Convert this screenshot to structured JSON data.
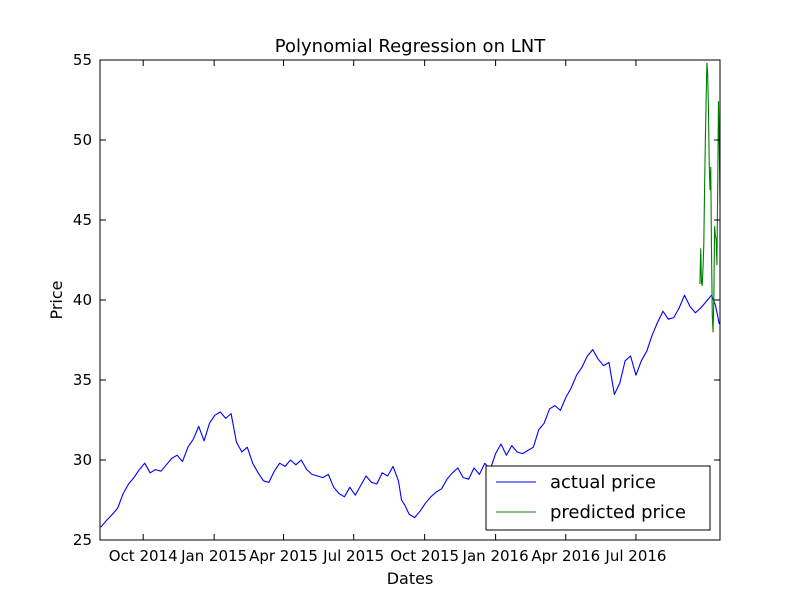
{
  "chart_data": {
    "type": "line",
    "title": "Polynomial Regression on LNT",
    "xlabel": "Dates",
    "ylabel": "Price",
    "xlim": [
      "2014-08-06",
      "2016-10-18"
    ],
    "ylim": [
      25,
      55
    ],
    "yticks": [
      25,
      30,
      35,
      40,
      45,
      50,
      55
    ],
    "xticks": [
      {
        "date": "2014-10-01",
        "label": "Oct 2014"
      },
      {
        "date": "2015-01-01",
        "label": "Jan 2015"
      },
      {
        "date": "2015-04-01",
        "label": "Apr 2015"
      },
      {
        "date": "2015-07-01",
        "label": "Jul 2015"
      },
      {
        "date": "2015-10-01",
        "label": "Oct 2015"
      },
      {
        "date": "2016-01-01",
        "label": "Jan 2016"
      },
      {
        "date": "2016-04-01",
        "label": "Apr 2016"
      },
      {
        "date": "2016-07-01",
        "label": "Jul 2016"
      }
    ],
    "grid": false,
    "legend": "lower-right",
    "series": [
      {
        "name": "actual price",
        "color": "#0000ff",
        "points": [
          [
            "2014-08-07",
            25.8
          ],
          [
            "2014-08-14",
            26.2
          ],
          [
            "2014-08-22",
            26.6
          ],
          [
            "2014-08-29",
            27.0
          ],
          [
            "2014-09-05",
            27.9
          ],
          [
            "2014-09-12",
            28.5
          ],
          [
            "2014-09-19",
            28.9
          ],
          [
            "2014-09-26",
            29.4
          ],
          [
            "2014-10-03",
            29.8
          ],
          [
            "2014-10-10",
            29.2
          ],
          [
            "2014-10-17",
            29.4
          ],
          [
            "2014-10-24",
            29.3
          ],
          [
            "2014-10-31",
            29.7
          ],
          [
            "2014-11-07",
            30.1
          ],
          [
            "2014-11-14",
            30.3
          ],
          [
            "2014-11-21",
            29.9
          ],
          [
            "2014-11-28",
            30.8
          ],
          [
            "2014-12-05",
            31.3
          ],
          [
            "2014-12-12",
            32.1
          ],
          [
            "2014-12-19",
            31.2
          ],
          [
            "2014-12-26",
            32.3
          ],
          [
            "2015-01-02",
            32.8
          ],
          [
            "2015-01-09",
            33.0
          ],
          [
            "2015-01-16",
            32.6
          ],
          [
            "2015-01-23",
            32.9
          ],
          [
            "2015-01-30",
            31.1
          ],
          [
            "2015-02-06",
            30.5
          ],
          [
            "2015-02-13",
            30.8
          ],
          [
            "2015-02-20",
            29.8
          ],
          [
            "2015-02-27",
            29.2
          ],
          [
            "2015-03-06",
            28.7
          ],
          [
            "2015-03-13",
            28.6
          ],
          [
            "2015-03-20",
            29.3
          ],
          [
            "2015-03-27",
            29.8
          ],
          [
            "2015-04-03",
            29.6
          ],
          [
            "2015-04-10",
            30.0
          ],
          [
            "2015-04-17",
            29.7
          ],
          [
            "2015-04-24",
            30.0
          ],
          [
            "2015-05-01",
            29.4
          ],
          [
            "2015-05-08",
            29.1
          ],
          [
            "2015-05-15",
            29.0
          ],
          [
            "2015-05-22",
            28.9
          ],
          [
            "2015-05-29",
            29.1
          ],
          [
            "2015-06-05",
            28.3
          ],
          [
            "2015-06-12",
            27.9
          ],
          [
            "2015-06-19",
            27.7
          ],
          [
            "2015-06-26",
            28.3
          ],
          [
            "2015-07-03",
            27.8
          ],
          [
            "2015-07-10",
            28.4
          ],
          [
            "2015-07-17",
            29.0
          ],
          [
            "2015-07-24",
            28.6
          ],
          [
            "2015-07-31",
            28.5
          ],
          [
            "2015-08-07",
            29.2
          ],
          [
            "2015-08-14",
            29.0
          ],
          [
            "2015-08-21",
            29.6
          ],
          [
            "2015-08-28",
            28.7
          ],
          [
            "2015-09-01",
            27.5
          ],
          [
            "2015-09-05",
            27.2
          ],
          [
            "2015-09-11",
            26.6
          ],
          [
            "2015-09-18",
            26.4
          ],
          [
            "2015-09-25",
            26.8
          ],
          [
            "2015-10-02",
            27.3
          ],
          [
            "2015-10-09",
            27.7
          ],
          [
            "2015-10-16",
            28.0
          ],
          [
            "2015-10-23",
            28.2
          ],
          [
            "2015-10-30",
            28.8
          ],
          [
            "2015-11-06",
            29.2
          ],
          [
            "2015-11-13",
            29.5
          ],
          [
            "2015-11-20",
            28.9
          ],
          [
            "2015-11-27",
            28.8
          ],
          [
            "2015-12-04",
            29.5
          ],
          [
            "2015-12-11",
            29.1
          ],
          [
            "2015-12-18",
            29.8
          ],
          [
            "2015-12-25",
            29.4
          ],
          [
            "2016-01-01",
            30.4
          ],
          [
            "2016-01-08",
            31.0
          ],
          [
            "2016-01-15",
            30.3
          ],
          [
            "2016-01-22",
            30.9
          ],
          [
            "2016-01-29",
            30.5
          ],
          [
            "2016-02-05",
            30.4
          ],
          [
            "2016-02-12",
            30.6
          ],
          [
            "2016-02-19",
            30.8
          ],
          [
            "2016-02-26",
            31.9
          ],
          [
            "2016-03-04",
            32.3
          ],
          [
            "2016-03-11",
            33.2
          ],
          [
            "2016-03-18",
            33.4
          ],
          [
            "2016-03-25",
            33.1
          ],
          [
            "2016-04-01",
            33.9
          ],
          [
            "2016-04-08",
            34.5
          ],
          [
            "2016-04-15",
            35.3
          ],
          [
            "2016-04-22",
            35.8
          ],
          [
            "2016-04-29",
            36.5
          ],
          [
            "2016-05-06",
            36.9
          ],
          [
            "2016-05-13",
            36.3
          ],
          [
            "2016-05-20",
            35.9
          ],
          [
            "2016-05-27",
            36.1
          ],
          [
            "2016-06-03",
            34.1
          ],
          [
            "2016-06-10",
            34.8
          ],
          [
            "2016-06-17",
            36.2
          ],
          [
            "2016-06-24",
            36.5
          ],
          [
            "2016-07-01",
            35.3
          ],
          [
            "2016-07-08",
            36.2
          ],
          [
            "2016-07-15",
            36.8
          ],
          [
            "2016-07-22",
            37.8
          ],
          [
            "2016-07-29",
            38.6
          ],
          [
            "2016-08-05",
            39.3
          ],
          [
            "2016-08-12",
            38.8
          ],
          [
            "2016-08-19",
            38.9
          ],
          [
            "2016-08-26",
            39.5
          ],
          [
            "2016-09-02",
            40.3
          ],
          [
            "2016-09-09",
            39.6
          ],
          [
            "2016-09-16",
            39.2
          ],
          [
            "2016-09-23",
            39.5
          ],
          [
            "2016-09-30",
            39.9
          ],
          [
            "2016-10-07",
            40.3
          ],
          [
            "2016-10-12",
            39.7
          ],
          [
            "2016-10-15",
            39.0
          ],
          [
            "2016-10-17",
            38.5
          ]
        ]
      },
      {
        "name": "predicted price",
        "color": "#008000",
        "points": [
          [
            "2016-09-22",
            41.0
          ],
          [
            "2016-09-23",
            43.2
          ],
          [
            "2016-09-24",
            41.1
          ],
          [
            "2016-09-25",
            40.9
          ],
          [
            "2016-09-26",
            42.0
          ],
          [
            "2016-09-27",
            43.5
          ],
          [
            "2016-09-28",
            47.0
          ],
          [
            "2016-09-29",
            50.0
          ],
          [
            "2016-09-30",
            52.5
          ],
          [
            "2016-10-01",
            54.8
          ],
          [
            "2016-10-02",
            54.2
          ],
          [
            "2016-10-03",
            52.0
          ],
          [
            "2016-10-04",
            48.5
          ],
          [
            "2016-10-05",
            46.9
          ],
          [
            "2016-10-06",
            48.3
          ],
          [
            "2016-10-07",
            43.0
          ],
          [
            "2016-10-08",
            39.0
          ],
          [
            "2016-10-09",
            38.0
          ],
          [
            "2016-10-10",
            40.0
          ],
          [
            "2016-10-11",
            44.6
          ],
          [
            "2016-10-12",
            44.0
          ],
          [
            "2016-10-13",
            43.8
          ],
          [
            "2016-10-14",
            42.2
          ],
          [
            "2016-10-15",
            47.0
          ],
          [
            "2016-10-16",
            52.4
          ],
          [
            "2016-10-17",
            50.0
          ],
          [
            "2016-10-18",
            46.0
          ]
        ]
      }
    ]
  }
}
